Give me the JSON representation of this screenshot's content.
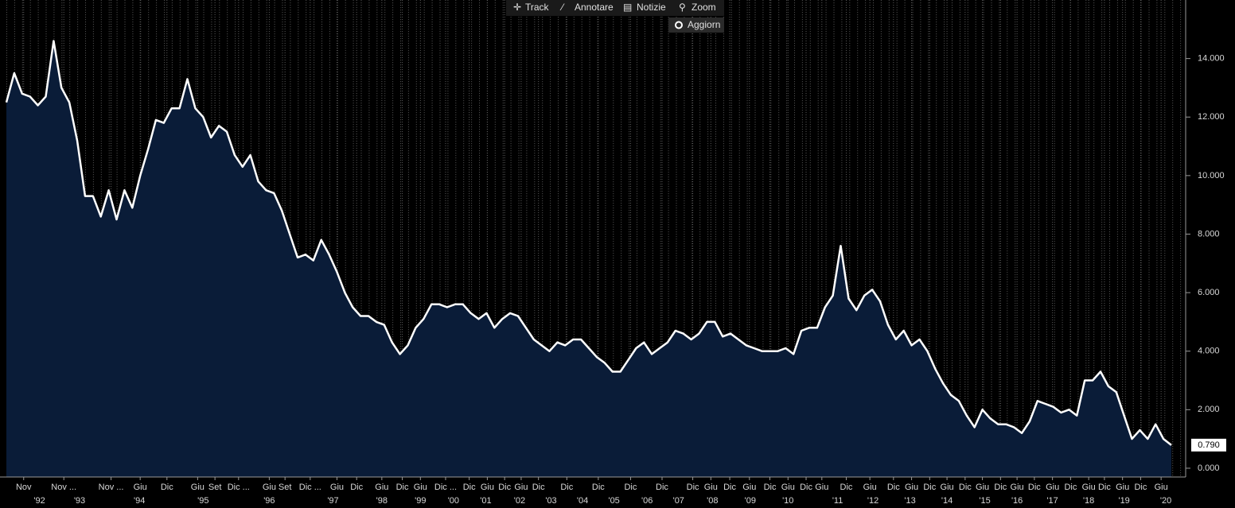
{
  "toolbar": {
    "buttons": [
      "Track",
      "Annotare",
      "Notizie",
      "Zoom"
    ],
    "toggle": "Aggiorn"
  },
  "chart_data": {
    "type": "area",
    "color": "#ffffff",
    "fill": "#0a1c38",
    "grid": true,
    "values": [
      12.5,
      13.5,
      12.8,
      12.7,
      12.4,
      12.7,
      14.6,
      13.0,
      12.5,
      11.2,
      9.3,
      9.3,
      8.6,
      9.5,
      8.5,
      9.5,
      8.9,
      10.0,
      10.9,
      11.9,
      11.8,
      12.3,
      12.3,
      13.3,
      12.3,
      12.0,
      11.3,
      11.7,
      11.5,
      10.7,
      10.3,
      10.7,
      9.8,
      9.5,
      9.4,
      8.8,
      8.0,
      7.2,
      7.3,
      7.1,
      7.8,
      7.3,
      6.7,
      6.0,
      5.5,
      5.2,
      5.2,
      5.0,
      4.9,
      4.3,
      3.9,
      4.2,
      4.8,
      5.1,
      5.6,
      5.6,
      5.5,
      5.6,
      5.6,
      5.3,
      5.1,
      5.3,
      4.8,
      5.1,
      5.3,
      5.2,
      4.8,
      4.4,
      4.2,
      4.0,
      4.3,
      4.2,
      4.4,
      4.4,
      4.1,
      3.8,
      3.6,
      3.3,
      3.3,
      3.7,
      4.1,
      4.3,
      3.9,
      4.1,
      4.3,
      4.7,
      4.6,
      4.4,
      4.6,
      5.0,
      5.0,
      4.5,
      4.6,
      4.4,
      4.2,
      4.1,
      4.0,
      4.0,
      4.0,
      4.1,
      3.9,
      4.7,
      4.8,
      4.8,
      5.5,
      5.9,
      7.6,
      5.8,
      5.4,
      5.9,
      6.1,
      5.7,
      4.9,
      4.4,
      4.7,
      4.2,
      4.4,
      4.0,
      3.4,
      2.9,
      2.5,
      2.3,
      1.8,
      1.4,
      2.0,
      1.7,
      1.5,
      1.5,
      1.4,
      1.2,
      1.6,
      2.3,
      2.2,
      2.1,
      1.9,
      2.0,
      1.8,
      3.0,
      3.0,
      3.3,
      2.8,
      2.6,
      1.8,
      1.0,
      1.3,
      1.0,
      1.5,
      1.0,
      0.79
    ],
    "last_value_label": "0.790",
    "ylim": [
      -0.3,
      16.0
    ],
    "yticks": [
      {
        "value": 0,
        "label": "0.000"
      },
      {
        "value": 2,
        "label": "2.000"
      },
      {
        "value": 4,
        "label": "4.000"
      },
      {
        "value": 6,
        "label": "6.000"
      },
      {
        "value": 8,
        "label": "8.000"
      },
      {
        "value": 10,
        "label": "10.000"
      },
      {
        "value": 12,
        "label": "12.000"
      },
      {
        "value": 14,
        "label": "14.000"
      }
    ],
    "xticks": [
      {
        "value": 2.2,
        "label": "Nov"
      },
      {
        "value": 7.3,
        "label": "Nov ..."
      },
      {
        "value": 13.3,
        "label": "Nov ..."
      },
      {
        "value": 17.0,
        "label": "Giu"
      },
      {
        "value": 20.4,
        "label": "Dic"
      },
      {
        "value": 24.3,
        "label": "Giu"
      },
      {
        "value": 26.5,
        "label": "Set"
      },
      {
        "value": 29.5,
        "label": "Dic ..."
      },
      {
        "value": 33.4,
        "label": "Giu"
      },
      {
        "value": 35.4,
        "label": "Set"
      },
      {
        "value": 38.6,
        "label": "Dic ..."
      },
      {
        "value": 42.0,
        "label": "Giu"
      },
      {
        "value": 44.5,
        "label": "Dic"
      },
      {
        "value": 47.7,
        "label": "Giu"
      },
      {
        "value": 50.3,
        "label": "Dic"
      },
      {
        "value": 52.6,
        "label": "Giu"
      },
      {
        "value": 55.8,
        "label": "Dic ..."
      },
      {
        "value": 58.8,
        "label": "Dic"
      },
      {
        "value": 61.1,
        "label": "Giu"
      },
      {
        "value": 63.3,
        "label": "Dic"
      },
      {
        "value": 65.4,
        "label": "Giu"
      },
      {
        "value": 67.6,
        "label": "Dic"
      },
      {
        "value": 71.2,
        "label": "Dic"
      },
      {
        "value": 75.2,
        "label": "Dic"
      },
      {
        "value": 79.3,
        "label": "Dic"
      },
      {
        "value": 83.3,
        "label": "Dic"
      },
      {
        "value": 87.2,
        "label": "Dic"
      },
      {
        "value": 89.5,
        "label": "Giu"
      },
      {
        "value": 91.9,
        "label": "Dic"
      },
      {
        "value": 94.4,
        "label": "Giu"
      },
      {
        "value": 97.0,
        "label": "Dic"
      },
      {
        "value": 99.3,
        "label": "Giu"
      },
      {
        "value": 101.6,
        "label": "Dic"
      },
      {
        "value": 103.6,
        "label": "Giu"
      },
      {
        "value": 106.7,
        "label": "Dic"
      },
      {
        "value": 109.7,
        "label": "Giu"
      },
      {
        "value": 112.7,
        "label": "Dic"
      },
      {
        "value": 115.0,
        "label": "Giu"
      },
      {
        "value": 117.3,
        "label": "Dic"
      },
      {
        "value": 119.5,
        "label": "Giu"
      },
      {
        "value": 121.8,
        "label": "Dic"
      },
      {
        "value": 124.0,
        "label": "Giu"
      },
      {
        "value": 126.3,
        "label": "Dic"
      },
      {
        "value": 128.4,
        "label": "Giu"
      },
      {
        "value": 130.6,
        "label": "Dic"
      },
      {
        "value": 132.9,
        "label": "Giu"
      },
      {
        "value": 135.2,
        "label": "Dic"
      },
      {
        "value": 137.5,
        "label": "Giu"
      },
      {
        "value": 139.5,
        "label": "Dic"
      },
      {
        "value": 141.8,
        "label": "Giu"
      },
      {
        "value": 144.1,
        "label": "Dic"
      },
      {
        "value": 146.7,
        "label": "Giu"
      }
    ],
    "year_ticks": [
      {
        "value": 4.2,
        "label": "'92"
      },
      {
        "value": 9.3,
        "label": "'93"
      },
      {
        "value": 16.9,
        "label": "'94"
      },
      {
        "value": 25.0,
        "label": "'95"
      },
      {
        "value": 33.4,
        "label": "'96"
      },
      {
        "value": 41.5,
        "label": "'97"
      },
      {
        "value": 47.7,
        "label": "'98"
      },
      {
        "value": 52.6,
        "label": "'99"
      },
      {
        "value": 56.8,
        "label": "'00"
      },
      {
        "value": 60.9,
        "label": "'01"
      },
      {
        "value": 65.2,
        "label": "'02"
      },
      {
        "value": 69.2,
        "label": "'03"
      },
      {
        "value": 73.2,
        "label": "'04"
      },
      {
        "value": 77.2,
        "label": "'05"
      },
      {
        "value": 81.4,
        "label": "'06"
      },
      {
        "value": 85.4,
        "label": "'07"
      },
      {
        "value": 89.7,
        "label": "'08"
      },
      {
        "value": 94.5,
        "label": "'09"
      },
      {
        "value": 99.3,
        "label": "'10"
      },
      {
        "value": 105.6,
        "label": "'11"
      },
      {
        "value": 110.1,
        "label": "'12"
      },
      {
        "value": 114.8,
        "label": "'13"
      },
      {
        "value": 119.5,
        "label": "'14"
      },
      {
        "value": 124.3,
        "label": "'15"
      },
      {
        "value": 128.4,
        "label": "'16"
      },
      {
        "value": 132.9,
        "label": "'17"
      },
      {
        "value": 137.5,
        "label": "'18"
      },
      {
        "value": 142.0,
        "label": "'19"
      },
      {
        "value": 147.3,
        "label": "'20"
      }
    ]
  }
}
